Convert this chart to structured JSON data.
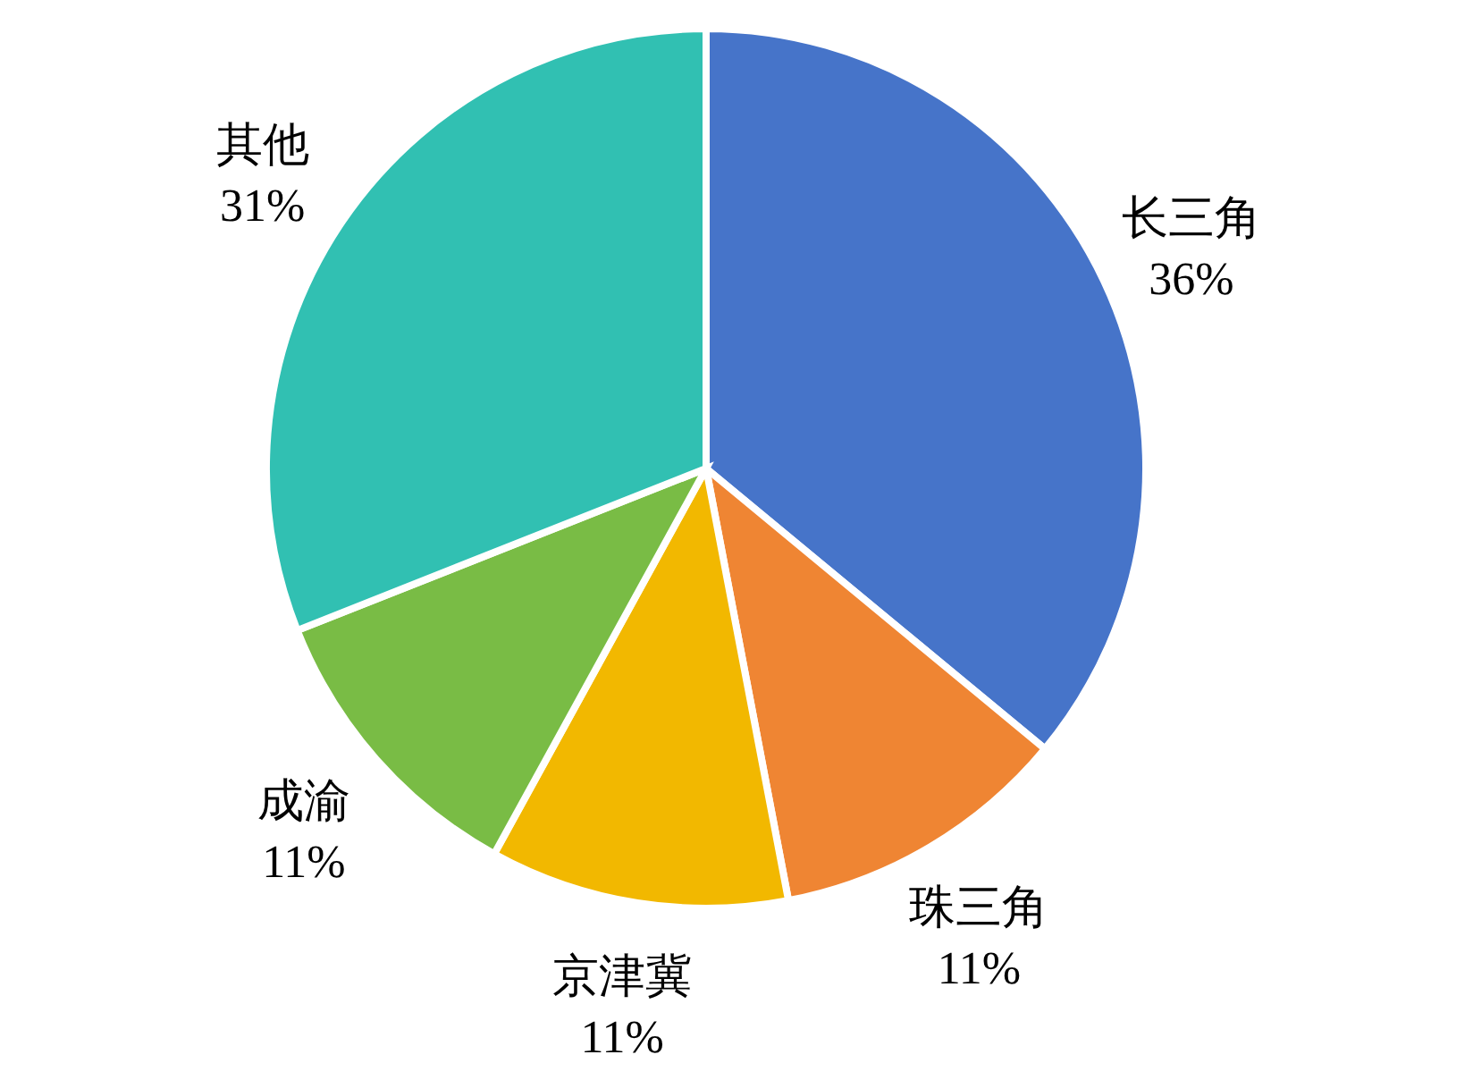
{
  "chart_data": {
    "type": "pie",
    "categories": [
      "长三角",
      "珠三角",
      "京津冀",
      "成渝",
      "其他"
    ],
    "values": [
      36,
      11,
      11,
      11,
      31
    ],
    "value_labels": [
      "36%",
      "11%",
      "11%",
      "11%",
      "31%"
    ],
    "colors": [
      "#4674c9",
      "#ef8533",
      "#f2b800",
      "#79bc45",
      "#31c0b2"
    ],
    "legend": false
  }
}
